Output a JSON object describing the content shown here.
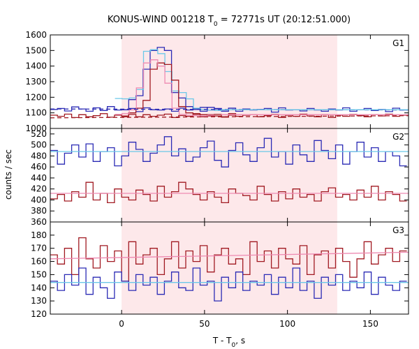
{
  "chart_data": {
    "type": "line",
    "title": "KONUS-WIND 001218 T",
    "title_sub": "0",
    "title_rest": " = 72771s UT (20:12:51.000)",
    "xlabel": "T - T",
    "xlabel_sub": "0",
    "xlabel_rest": ", s",
    "ylabel": "counts / sec",
    "xlim": [
      -43,
      173
    ],
    "x_ticks": [
      0,
      50,
      100,
      150
    ],
    "highlight_interval": [
      0,
      130
    ],
    "colors": {
      "blue": "#2b2bb5",
      "red": "#a11a22",
      "cyan": "#6cc8e8",
      "pink": "#ee8ab2",
      "highlight": "#fde8ea"
    },
    "panels": [
      {
        "label": "G1",
        "ylim": [
          1000,
          1600
        ],
        "y_ticks": [
          1000,
          1100,
          1200,
          1300,
          1400,
          1500,
          1600
        ],
        "series": [
          {
            "color": "blue",
            "style": "step",
            "x0": -43,
            "dx": 4.3,
            "values": [
              1122,
              1128,
              1112,
              1138,
              1125,
              1110,
              1132,
              1115,
              1140,
              1118,
              1120,
              1128,
              1108,
              1132,
              1120,
              1118,
              1125,
              1110,
              1130,
              1118,
              1122,
              1110,
              1135,
              1128,
              1118,
              1130,
              1110,
              1125,
              1118,
              1122,
              1128,
              1105,
              1132,
              1118,
              1120,
              1112,
              1128,
              1118,
              1110,
              1125,
              1118,
              1132,
              1110,
              1120,
              1128,
              1115,
              1122,
              1108,
              1130,
              1118
            ]
          },
          {
            "color": "red",
            "style": "step",
            "x0": -43,
            "dx": 4.3,
            "values": [
              1085,
              1078,
              1092,
              1070,
              1088,
              1075,
              1082,
              1095,
              1072,
              1085,
              1080,
              1090,
              1075,
              1088,
              1078,
              1085,
              1092,
              1070,
              1083,
              1078,
              1090,
              1075,
              1088,
              1080,
              1072,
              1095,
              1078,
              1085,
              1088,
              1075,
              1082,
              1090,
              1070,
              1085,
              1078,
              1092,
              1080,
              1075,
              1088,
              1070,
              1085,
              1078,
              1090,
              1082,
              1075,
              1088,
              1080,
              1092,
              1078,
              1085
            ]
          },
          {
            "color": "blue",
            "style": "step",
            "x0": 0,
            "dx": 4.3,
            "values": [
              1120,
              1185,
              1210,
              1380,
              1500,
              1520,
              1500,
              1230,
              1195,
              1140,
              1128,
              1135,
              1118,
              1125,
              1110,
              1130
            ]
          },
          {
            "color": "cyan",
            "style": "step",
            "x0": -4,
            "dx": 4.3,
            "values": [
              1192,
              1190,
              1195,
              1250,
              1495,
              1505,
              1480,
              1365,
              1240,
              1230,
              1190,
              1130,
              1120,
              1118,
              1115
            ]
          },
          {
            "color": "red",
            "style": "step",
            "x0": 0,
            "dx": 4.3,
            "values": [
              1075,
              1100,
              1130,
              1180,
              1380,
              1420,
              1410,
              1310,
              1140,
              1100,
              1095,
              1088,
              1080,
              1090,
              1075,
              1085
            ]
          },
          {
            "color": "pink",
            "style": "step",
            "x0": -4,
            "dx": 4.3,
            "values": [
              1090,
              1095,
              1120,
              1260,
              1420,
              1440,
              1400,
              1290,
              1130,
              1090,
              1085,
              1082,
              1080,
              1085
            ]
          },
          {
            "color": "blue",
            "style": "dashed",
            "points": [
              [
                -43,
                1125
              ],
              [
                173,
                1118
              ]
            ]
          },
          {
            "color": "red",
            "style": "dashed",
            "points": [
              [
                -43,
                1068
              ],
              [
                173,
                1082
              ]
            ]
          },
          {
            "color": "cyan",
            "style": "line",
            "points": [
              [
                60,
                1120
              ],
              [
                173,
                1120
              ]
            ]
          },
          {
            "color": "pink",
            "style": "line",
            "points": [
              [
                60,
                1088
              ],
              [
                173,
                1088
              ]
            ]
          }
        ]
      },
      {
        "label": "G2",
        "ylim": [
          360,
          530
        ],
        "y_ticks": [
          360,
          380,
          400,
          420,
          440,
          460,
          480,
          500,
          520
        ],
        "series": [
          {
            "color": "blue",
            "style": "step",
            "x0": -43,
            "dx": 4.3,
            "values": [
              490,
              465,
              485,
              500,
              478,
              502,
              470,
              488,
              495,
              462,
              480,
              505,
              492,
              470,
              485,
              500,
              515,
              480,
              493,
              470,
              478,
              495,
              507,
              472,
              460,
              490,
              504,
              482,
              470,
              495,
              512,
              478,
              488,
              465,
              500,
              482,
              470,
              508,
              490,
              475,
              500,
              465,
              488,
              505,
              478,
              495,
              470,
              488,
              480,
              462
            ]
          },
          {
            "color": "cyan",
            "style": "line",
            "points": [
              [
                -43,
                488
              ],
              [
                173,
                488
              ]
            ]
          },
          {
            "color": "red",
            "style": "step",
            "x0": -43,
            "dx": 4.3,
            "values": [
              402,
              410,
              398,
              415,
              405,
              432,
              400,
              412,
              395,
              420,
              405,
              400,
              418,
              410,
              398,
              425,
              405,
              415,
              432,
              420,
              410,
              400,
              415,
              405,
              395,
              420,
              412,
              408,
              400,
              425,
              410,
              398,
              415,
              402,
              420,
              405,
              410,
              398,
              415,
              422,
              405,
              410,
              400,
              418,
              405,
              425,
              400,
              415,
              410,
              398
            ]
          },
          {
            "color": "pink",
            "style": "line",
            "points": [
              [
                -43,
                412
              ],
              [
                173,
                412
              ]
            ]
          }
        ]
      },
      {
        "label": "G3",
        "ylim": [
          120,
          190
        ],
        "y_ticks": [
          120,
          130,
          140,
          150,
          160,
          170,
          180
        ],
        "series": [
          {
            "color": "red",
            "style": "step",
            "x0": -43,
            "dx": 4.3,
            "values": [
              165,
              158,
              170,
              150,
              178,
              162,
              155,
              172,
              160,
              168,
              145,
              175,
              158,
              165,
              170,
              150,
              162,
              175,
              155,
              168,
              160,
              172,
              152,
              165,
              170,
              158,
              162,
              150,
              175,
              160,
              168,
              155,
              170,
              162,
              158,
              172,
              150,
              165,
              168,
              155,
              170,
              160,
              148,
              162,
              175,
              158,
              165,
              170,
              160,
              168
            ]
          },
          {
            "color": "pink",
            "style": "line",
            "points": [
              [
                -43,
                162
              ],
              [
                173,
                167
              ]
            ]
          },
          {
            "color": "blue",
            "style": "step",
            "x0": -43,
            "dx": 4.3,
            "values": [
              145,
              138,
              150,
              142,
              155,
              135,
              148,
              140,
              132,
              152,
              145,
              138,
              150,
              142,
              148,
              135,
              145,
              152,
              140,
              138,
              155,
              142,
              145,
              130,
              148,
              140,
              152,
              138,
              145,
              142,
              150,
              135,
              148,
              140,
              155,
              138,
              145,
              132,
              148,
              142,
              150,
              138,
              145,
              140,
              152,
              135,
              148,
              142,
              138,
              145
            ]
          },
          {
            "color": "cyan",
            "style": "line",
            "points": [
              [
                -43,
                144
              ],
              [
                173,
                144
              ]
            ]
          }
        ]
      }
    ]
  }
}
